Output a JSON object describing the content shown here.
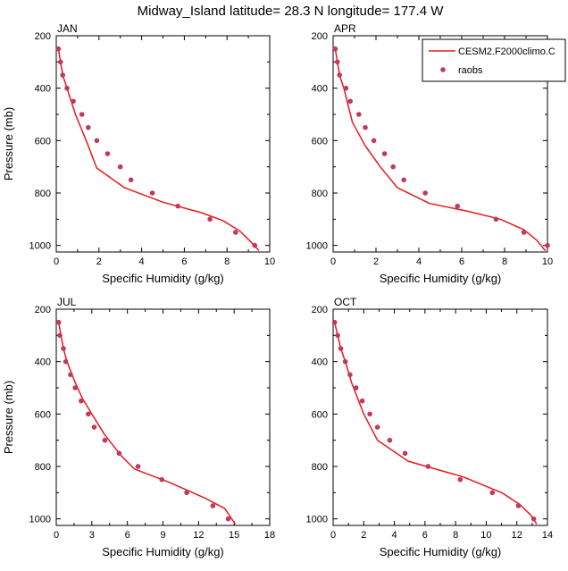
{
  "figure_title": "Midway_Island  latitude= 28.3 N longitude= 177.4 W",
  "legend": {
    "model_label": "CESM2.F2000climo.C",
    "obs_label": "raobs",
    "model_color": "#e8191c",
    "obs_color": "#c0395f"
  },
  "chart_data": [
    {
      "type": "line",
      "panel_label": "JAN",
      "xlabel": "Specific Humidity (g/kg)",
      "ylabel": "Pressure (mb)",
      "xlim": [
        0,
        10
      ],
      "ylim": [
        1025,
        200
      ],
      "xticks": [
        0,
        2,
        4,
        6,
        8,
        10
      ],
      "yticks": [
        200,
        400,
        600,
        800,
        1000
      ],
      "y_reversed": true,
      "series": [
        {
          "name": "CESM2.F2000climo.C",
          "kind": "line",
          "x": [
            0.1,
            0.2,
            0.3,
            0.5,
            0.9,
            1.4,
            1.9,
            3.2,
            5.0,
            6.8,
            7.8,
            8.6,
            9.1,
            9.5
          ],
          "y": [
            250,
            300,
            350,
            400,
            500,
            600,
            705,
            780,
            835,
            875,
            905,
            945,
            985,
            1020
          ]
        },
        {
          "name": "raobs",
          "kind": "scatter",
          "x": [
            0.1,
            0.2,
            0.3,
            0.5,
            0.8,
            1.2,
            1.5,
            1.9,
            2.4,
            3.0,
            3.5,
            4.5,
            5.7,
            7.2,
            8.4,
            9.3
          ],
          "y": [
            250,
            300,
            350,
            400,
            450,
            500,
            550,
            600,
            650,
            700,
            750,
            800,
            850,
            900,
            950,
            1000
          ]
        }
      ]
    },
    {
      "type": "line",
      "panel_label": "APR",
      "xlabel": "Specific Humidity (g/kg)",
      "ylabel": "",
      "xlim": [
        0,
        10
      ],
      "ylim": [
        1025,
        200
      ],
      "xticks": [
        0,
        2,
        4,
        6,
        8,
        10
      ],
      "yticks": [
        200,
        400,
        600,
        800,
        1000
      ],
      "y_reversed": true,
      "series": [
        {
          "name": "CESM2.F2000climo.C",
          "kind": "line",
          "x": [
            0.1,
            0.2,
            0.3,
            0.5,
            0.9,
            1.5,
            2.2,
            3.0,
            4.5,
            6.3,
            7.8,
            8.9,
            9.5,
            9.9
          ],
          "y": [
            250,
            300,
            350,
            400,
            530,
            620,
            700,
            780,
            840,
            870,
            900,
            940,
            980,
            1020
          ]
        },
        {
          "name": "raobs",
          "kind": "scatter",
          "x": [
            0.1,
            0.2,
            0.3,
            0.6,
            0.8,
            1.2,
            1.5,
            1.9,
            2.4,
            2.8,
            3.3,
            4.3,
            5.8,
            7.6,
            8.9,
            10.0
          ],
          "y": [
            250,
            300,
            350,
            400,
            450,
            500,
            550,
            600,
            650,
            700,
            750,
            800,
            850,
            900,
            950,
            1000
          ]
        }
      ]
    },
    {
      "type": "line",
      "panel_label": "JUL",
      "xlabel": "Specific Humidity (g/kg)",
      "ylabel": "Pressure (mb)",
      "xlim": [
        0,
        18
      ],
      "ylim": [
        1025,
        200
      ],
      "xticks": [
        0,
        3,
        6,
        9,
        12,
        15,
        18
      ],
      "yticks": [
        200,
        400,
        600,
        800,
        1000
      ],
      "y_reversed": true,
      "series": [
        {
          "name": "CESM2.F2000climo.C",
          "kind": "line",
          "x": [
            0.2,
            0.4,
            0.6,
            0.9,
            1.6,
            2.2,
            3.0,
            4.1,
            5.5,
            6.6,
            9.5,
            12.5,
            14.2,
            15.1
          ],
          "y": [
            250,
            300,
            350,
            400,
            480,
            540,
            600,
            680,
            760,
            810,
            860,
            920,
            960,
            1020
          ]
        },
        {
          "name": "raobs",
          "kind": "scatter",
          "x": [
            0.2,
            0.3,
            0.6,
            0.8,
            1.2,
            1.6,
            2.1,
            2.7,
            3.2,
            4.1,
            5.3,
            6.9,
            8.9,
            11.0,
            13.2,
            14.5
          ],
          "y": [
            250,
            300,
            350,
            400,
            450,
            500,
            550,
            600,
            650,
            700,
            750,
            800,
            850,
            900,
            950,
            1000
          ]
        }
      ]
    },
    {
      "type": "line",
      "panel_label": "OCT",
      "xlabel": "Specific Humidity (g/kg)",
      "ylabel": "",
      "xlim": [
        0,
        14
      ],
      "ylim": [
        1025,
        200
      ],
      "xticks": [
        0,
        2,
        4,
        6,
        8,
        10,
        12,
        14
      ],
      "yticks": [
        200,
        400,
        600,
        800,
        1000
      ],
      "y_reversed": true,
      "series": [
        {
          "name": "CESM2.F2000climo.C",
          "kind": "line",
          "x": [
            0.1,
            0.3,
            0.5,
            0.8,
            1.2,
            2.0,
            2.9,
            4.9,
            8.5,
            11.0,
            12.2,
            12.9,
            13.3
          ],
          "y": [
            250,
            300,
            350,
            400,
            480,
            600,
            700,
            780,
            840,
            900,
            945,
            985,
            1020
          ]
        },
        {
          "name": "raobs",
          "kind": "scatter",
          "x": [
            0.1,
            0.3,
            0.5,
            0.8,
            1.1,
            1.5,
            1.9,
            2.4,
            2.9,
            3.7,
            4.7,
            6.2,
            8.3,
            10.4,
            12.1,
            13.1
          ],
          "y": [
            250,
            300,
            350,
            400,
            450,
            500,
            550,
            600,
            650,
            700,
            750,
            800,
            850,
            900,
            950,
            1000
          ]
        }
      ]
    }
  ]
}
